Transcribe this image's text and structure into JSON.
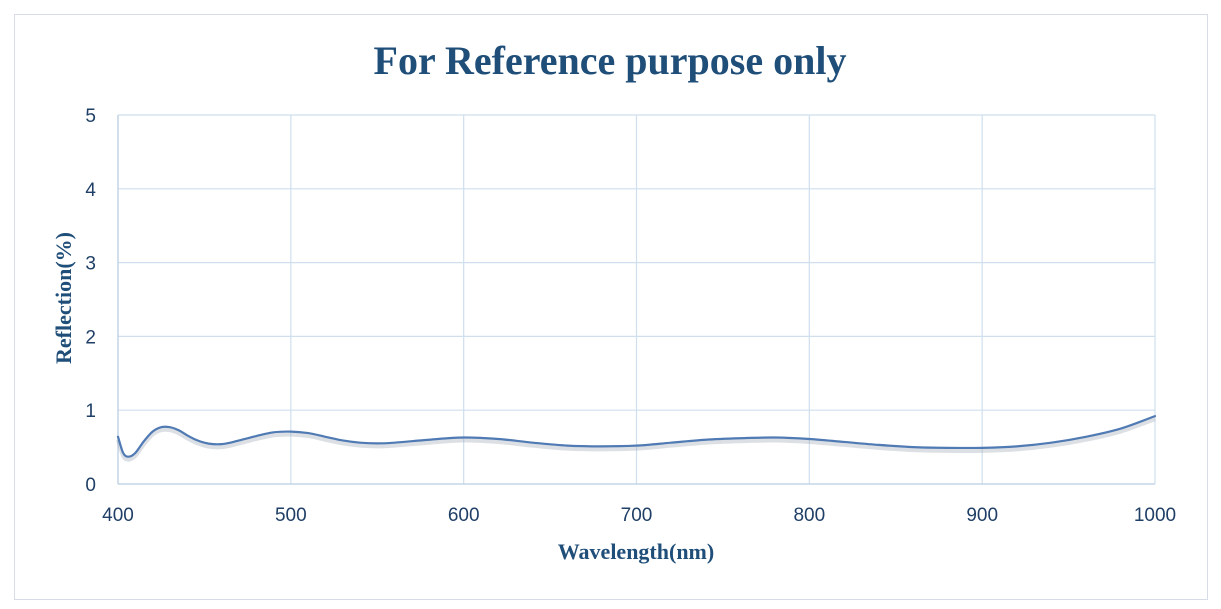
{
  "chart_data": {
    "type": "line",
    "title": "For Reference purpose only",
    "xlabel": "Wavelength(nm)",
    "ylabel": "Reflection(%)",
    "xlim": [
      400,
      1000
    ],
    "ylim": [
      0,
      5
    ],
    "x_ticks": [
      400,
      500,
      600,
      700,
      800,
      900,
      1000
    ],
    "x_tick_labels": [
      "400",
      "500",
      "600",
      "700",
      "800",
      "900",
      "1000"
    ],
    "y_ticks": [
      0,
      1,
      2,
      3,
      4,
      5
    ],
    "y_tick_labels": [
      "0",
      "1",
      "2",
      "3",
      "4",
      "5"
    ],
    "grid": true,
    "legend": "none",
    "colors": {
      "series": "#4f7ab3",
      "grid": "#cfdfee",
      "title": "#1f4e79",
      "ticks": "#1f3f66"
    },
    "series": [
      {
        "x": [
          400,
          403,
          406,
          410,
          415,
          420,
          425,
          430,
          435,
          440,
          445,
          450,
          455,
          460,
          465,
          470,
          480,
          490,
          500,
          510,
          520,
          530,
          540,
          550,
          560,
          580,
          600,
          620,
          640,
          660,
          680,
          700,
          720,
          740,
          760,
          780,
          800,
          820,
          840,
          860,
          880,
          900,
          920,
          940,
          960,
          980,
          1000
        ],
        "y": [
          0.64,
          0.42,
          0.37,
          0.42,
          0.58,
          0.71,
          0.77,
          0.77,
          0.73,
          0.66,
          0.6,
          0.56,
          0.54,
          0.54,
          0.56,
          0.59,
          0.65,
          0.7,
          0.71,
          0.69,
          0.64,
          0.59,
          0.56,
          0.55,
          0.56,
          0.6,
          0.63,
          0.61,
          0.56,
          0.52,
          0.51,
          0.52,
          0.56,
          0.6,
          0.62,
          0.63,
          0.61,
          0.57,
          0.53,
          0.5,
          0.49,
          0.49,
          0.51,
          0.56,
          0.64,
          0.75,
          0.92
        ]
      }
    ]
  }
}
